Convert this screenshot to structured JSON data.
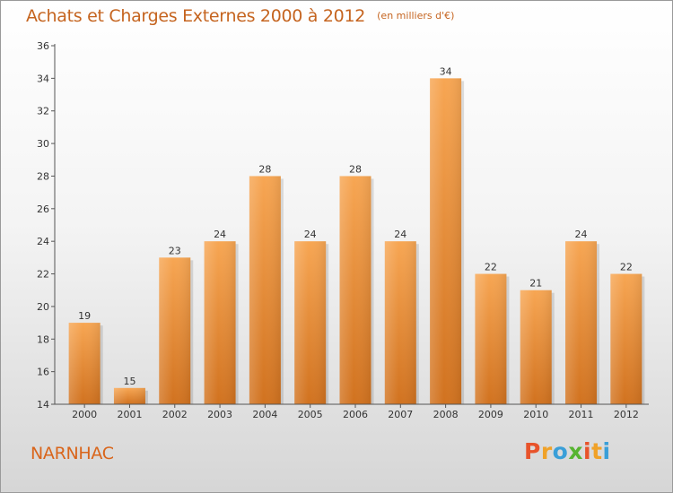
{
  "header": {
    "title": "Achats et Charges Externes 2000 à 2012",
    "subtitle": "(en milliers d'€)"
  },
  "footer": {
    "place": "NARNHAC",
    "brand": [
      "P",
      "r",
      "o",
      "x",
      "i",
      "t",
      "i"
    ],
    "brand_colors": [
      "#e8532b",
      "#f0a229",
      "#3a9fd8",
      "#57b431",
      "#e8532b",
      "#f0a229",
      "#3a9fd8"
    ]
  },
  "chart_data": {
    "type": "bar",
    "title": "Achats et Charges Externes 2000 à 2012",
    "subtitle": "(en milliers d'€)",
    "categories": [
      "2000",
      "2001",
      "2002",
      "2003",
      "2004",
      "2005",
      "2006",
      "2007",
      "2008",
      "2009",
      "2010",
      "2011",
      "2012"
    ],
    "values": [
      19,
      15,
      23,
      24,
      28,
      24,
      28,
      24,
      34,
      22,
      21,
      24,
      22
    ],
    "ylim": [
      14,
      36
    ],
    "yticks": [
      14,
      16,
      18,
      20,
      22,
      24,
      26,
      28,
      30,
      32,
      34,
      36
    ],
    "grid": false,
    "legend": "none",
    "bar_color": "#f0a050",
    "bar_color_dark": "#d07a2c"
  }
}
